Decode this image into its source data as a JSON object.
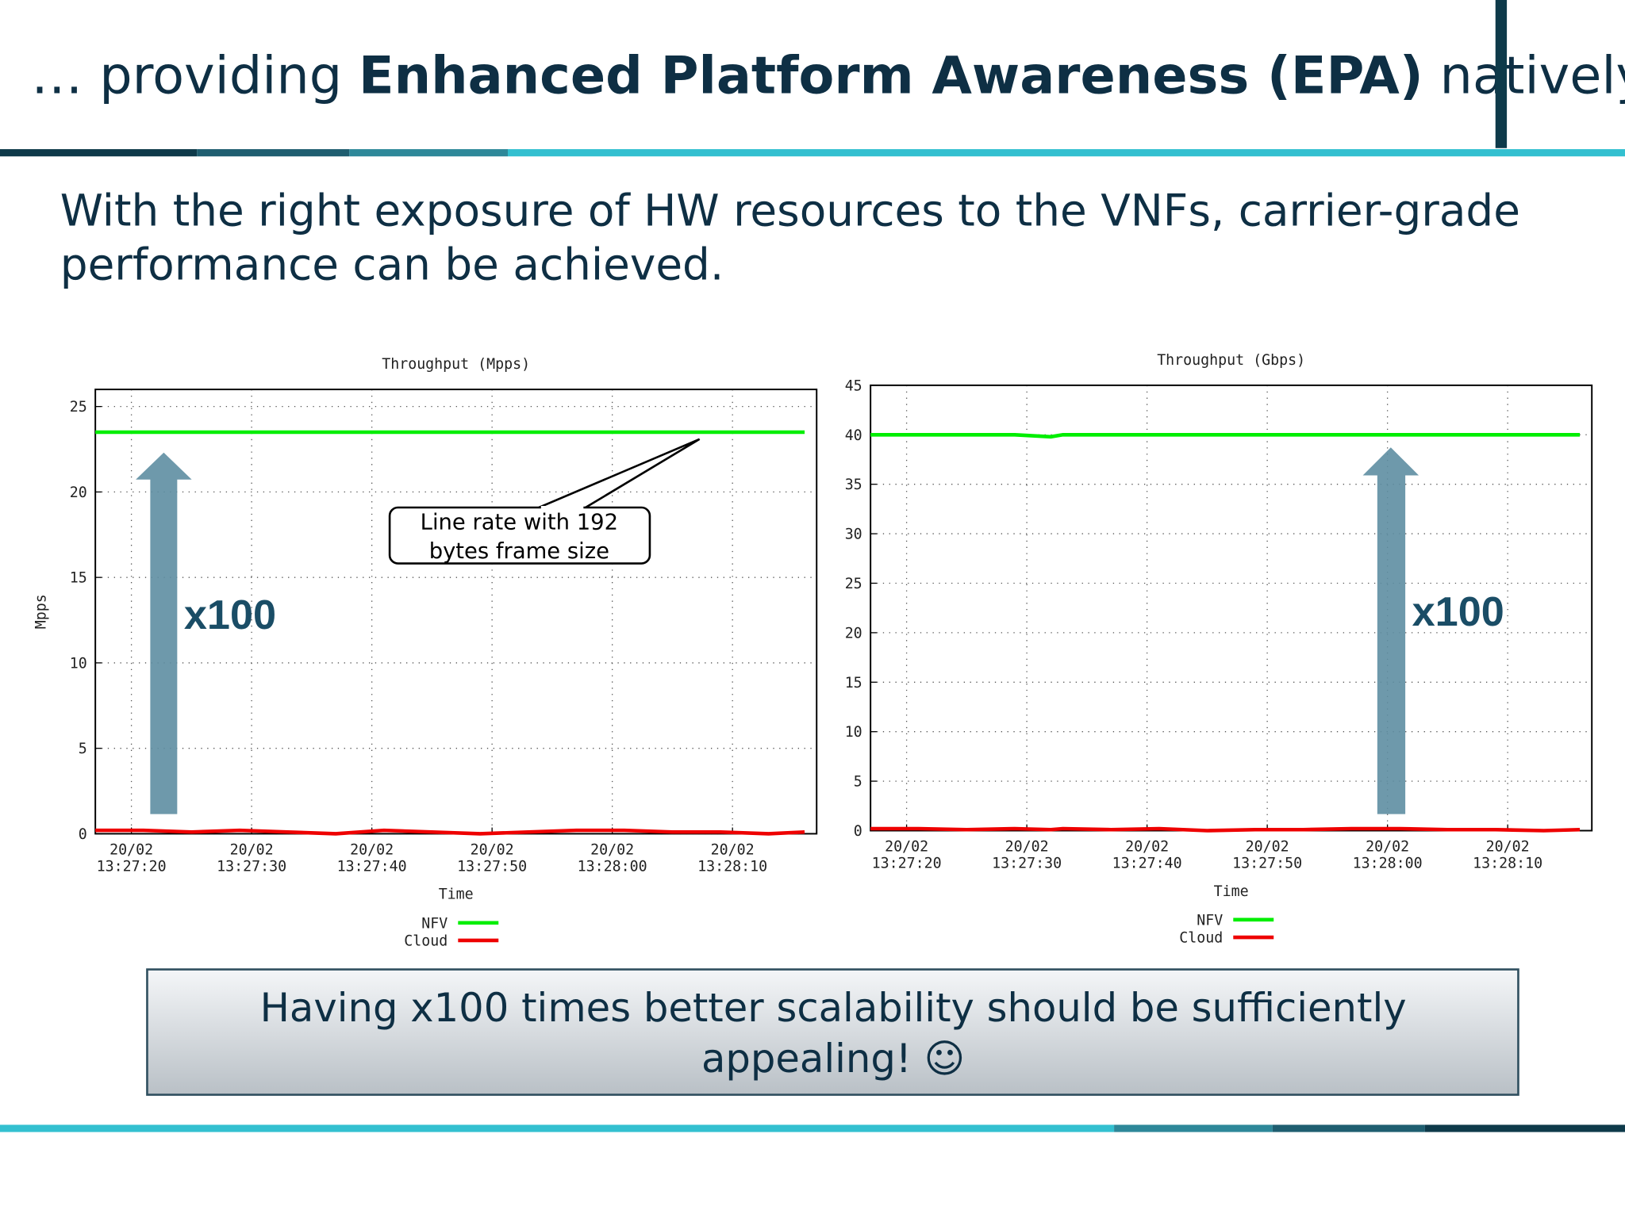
{
  "header": {
    "title_pre": "… providing ",
    "title_bold": "Enhanced Platform Awareness (EPA)",
    "title_post": " natively…"
  },
  "body": [
    "With the right exposure of HW resources to the VNFs, carrier-grade",
    "performance can be achieved."
  ],
  "chart_data": [
    {
      "type": "line",
      "title": "Throughput (Mpps)",
      "ylabel": "Mpps",
      "xlabel": "Time",
      "x": [
        "13:27:17",
        "13:27:21",
        "13:27:25",
        "13:27:29",
        "13:27:33",
        "13:27:37",
        "13:27:41",
        "13:27:45",
        "13:27:49",
        "13:27:53",
        "13:27:57",
        "13:28:01",
        "13:28:05",
        "13:28:09",
        "13:28:13",
        "13:28:16"
      ],
      "series": [
        {
          "name": "NFV",
          "color": "#00ee00",
          "values": [
            23.5,
            23.5,
            23.5,
            23.5,
            23.5,
            23.5,
            23.5,
            23.5,
            23.5,
            23.5,
            23.5,
            23.5,
            23.5,
            23.5,
            23.5,
            23.5
          ]
        },
        {
          "name": "Cloud",
          "color": "#ee0000",
          "values": [
            0.2,
            0.2,
            0.1,
            0.2,
            0.1,
            0,
            0.2,
            0.1,
            0,
            0.1,
            0.2,
            0.2,
            0.1,
            0.1,
            0,
            0.1
          ]
        }
      ],
      "xlim": [
        "13:27:17",
        "13:28:17"
      ],
      "xticks": [
        {
          "value": "13:27:20",
          "label": "20/02 13:27:20"
        },
        {
          "value": "13:27:30",
          "label": "20/02 13:27:30"
        },
        {
          "value": "13:27:40",
          "label": "20/02 13:27:40"
        },
        {
          "value": "13:27:50",
          "label": "20/02 13:27:50"
        },
        {
          "value": "13:28:00",
          "label": "20/02 13:28:00"
        },
        {
          "value": "13:28:10",
          "label": "20/02 13:28:10"
        }
      ],
      "ylim": [
        0,
        26
      ],
      "yticks": [
        0,
        5,
        10,
        15,
        20,
        25
      ],
      "grid": true,
      "legend": "bottom",
      "annotations": [
        "x100"
      ],
      "callout": [
        "Line rate with 192",
        "bytes frame size"
      ]
    },
    {
      "type": "line",
      "title": "Throughput (Gbps)",
      "xlabel": "Time",
      "x": [
        "13:27:17",
        "13:27:21",
        "13:27:25",
        "13:27:29",
        "13:27:32",
        "13:27:33",
        "13:27:37",
        "13:27:41",
        "13:27:45",
        "13:27:49",
        "13:27:53",
        "13:27:57",
        "13:28:01",
        "13:28:05",
        "13:28:09",
        "13:28:13",
        "13:28:16"
      ],
      "series": [
        {
          "name": "NFV",
          "color": "#00ee00",
          "values": [
            40,
            40,
            40,
            40,
            39.8,
            40,
            40,
            40,
            40,
            40,
            40,
            40,
            40,
            40,
            40,
            40,
            40
          ]
        },
        {
          "name": "Cloud",
          "color": "#ee0000",
          "values": [
            0.2,
            0.2,
            0.1,
            0.2,
            0.1,
            0.2,
            0.1,
            0.2,
            0,
            0.1,
            0.1,
            0.2,
            0.2,
            0.1,
            0.1,
            0,
            0.1
          ]
        }
      ],
      "xlim": [
        "13:27:17",
        "13:28:17"
      ],
      "xticks": [
        {
          "value": "13:27:20",
          "label": "20/02 13:27:20"
        },
        {
          "value": "13:27:30",
          "label": "20/02 13:27:30"
        },
        {
          "value": "13:27:40",
          "label": "20/02 13:27:40"
        },
        {
          "value": "13:27:50",
          "label": "20/02 13:27:50"
        },
        {
          "value": "13:28:00",
          "label": "20/02 13:28:00"
        },
        {
          "value": "13:28:10",
          "label": "20/02 13:28:10"
        }
      ],
      "ylim": [
        0,
        45
      ],
      "yticks": [
        0,
        5,
        10,
        15,
        20,
        25,
        30,
        35,
        40,
        45
      ],
      "grid": true,
      "legend": "bottom",
      "annotations": [
        "x100"
      ]
    }
  ],
  "footer_box": [
    "Having x100 times better scalability should be sufficiently",
    "appealing! ☺"
  ]
}
